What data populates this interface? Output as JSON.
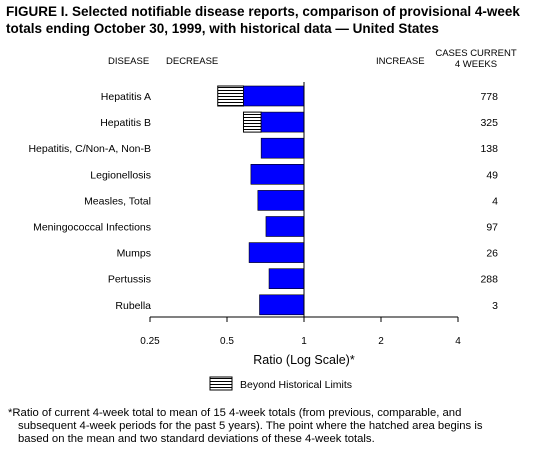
{
  "figure": {
    "title": "FIGURE I. Selected notifiable disease reports, comparison of provisional 4-week totals ending October 30, 1999, with historical data — United States"
  },
  "chart_data": {
    "type": "bar",
    "scale": "log2",
    "column_headers": {
      "disease": "DISEASE",
      "decrease": "DECREASE",
      "increase": "INCREASE",
      "cases_line1": "CASES CURRENT",
      "cases_line2": "4 WEEKS"
    },
    "categories": [
      "Hepatitis A",
      "Hepatitis B",
      "Hepatitis, C/Non-A, Non-B",
      "Legionellosis",
      "Measles, Total",
      "Meningococcal Infections",
      "Mumps",
      "Pertussis",
      "Rubella"
    ],
    "values": [
      0.46,
      0.58,
      0.68,
      0.62,
      0.66,
      0.71,
      0.61,
      0.73,
      0.67
    ],
    "hatched_to": [
      0.58,
      0.68,
      null,
      null,
      null,
      null,
      null,
      null,
      null
    ],
    "cases": [
      "778",
      "325",
      "138",
      "49",
      "4",
      "97",
      "26",
      "288",
      "3"
    ],
    "xticks": [
      0.25,
      0.5,
      1,
      2,
      4
    ],
    "xtick_labels": [
      "0.25",
      "0.5",
      "1",
      "2",
      "4"
    ],
    "xlim": [
      0.25,
      4
    ],
    "xlabel": "Ratio (Log Scale)*",
    "legend": {
      "label": "Beyond Historical Limits",
      "position": "bottom-center"
    },
    "colors": {
      "bar": "#0000ff",
      "hatch": "#000000"
    }
  },
  "footnote": {
    "line1": "*Ratio of current 4-week total to mean of 15 4-week totals (from previous, comparable, and",
    "line2": "subsequent 4-week periods for the past 5 years). The point where the hatched area begins is",
    "line3": "based on the mean and two standard deviations of these 4-week totals."
  }
}
